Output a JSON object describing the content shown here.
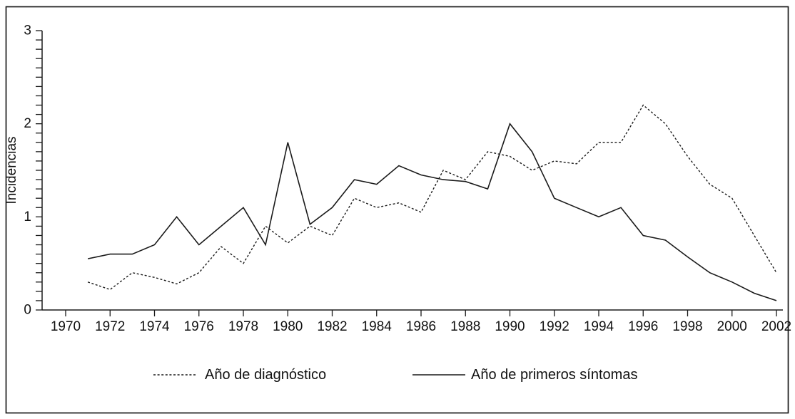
{
  "chart_data": {
    "type": "line",
    "title": "",
    "xlabel": "",
    "ylabel": "Incidencias",
    "grid": false,
    "legend_position": "bottom-center",
    "line_color": "#1a1a1a",
    "background_color": "#ffffff",
    "ylim": [
      0,
      3
    ],
    "xlim": [
      1969,
      2002.3
    ],
    "y_ticks": [
      0,
      1,
      2,
      3
    ],
    "y_minor_tick_step": 0.1,
    "x_ticks": [
      1970,
      1972,
      1974,
      1976,
      1978,
      1980,
      1982,
      1984,
      1986,
      1988,
      1990,
      1992,
      1994,
      1996,
      1998,
      2000,
      2002
    ],
    "x": [
      1971,
      1972,
      1973,
      1974,
      1975,
      1976,
      1977,
      1978,
      1979,
      1980,
      1981,
      1982,
      1983,
      1984,
      1985,
      1986,
      1987,
      1988,
      1989,
      1990,
      1991,
      1992,
      1993,
      1994,
      1995,
      1996,
      1997,
      1998,
      1999,
      2000,
      2001,
      2002
    ],
    "series": [
      {
        "name": "Año de diagnóstico",
        "style": "dashed",
        "values": [
          0.3,
          0.22,
          0.4,
          0.35,
          0.28,
          0.4,
          0.68,
          0.5,
          0.9,
          0.72,
          0.9,
          0.8,
          1.2,
          1.1,
          1.15,
          1.05,
          1.5,
          1.4,
          1.7,
          1.65,
          1.5,
          1.6,
          1.57,
          1.8,
          1.8,
          2.2,
          2.0,
          1.65,
          1.35,
          1.2,
          0.8,
          0.4
        ]
      },
      {
        "name": "Año de primeros síntomas",
        "style": "solid",
        "values": [
          0.55,
          0.6,
          0.6,
          0.7,
          1.0,
          0.7,
          0.9,
          1.1,
          0.7,
          1.8,
          0.92,
          1.1,
          1.4,
          1.35,
          1.55,
          1.45,
          1.4,
          1.38,
          1.3,
          2.0,
          1.7,
          1.2,
          1.1,
          1.0,
          1.1,
          0.8,
          0.75,
          0.57,
          0.4,
          0.3,
          0.18,
          0.1
        ]
      }
    ]
  }
}
